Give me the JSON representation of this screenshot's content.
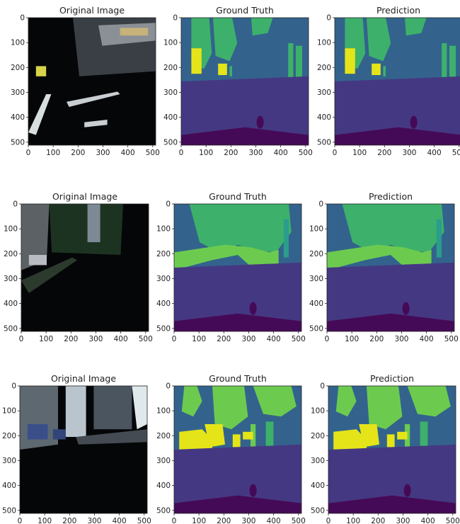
{
  "figure": {
    "panel_titles": [
      "Original Image",
      "Ground Truth",
      "Prediction"
    ],
    "axis": {
      "x_ticks": [
        "0",
        "100",
        "200",
        "300",
        "400",
        "500"
      ],
      "y_ticks": [
        "0",
        "100",
        "200",
        "300",
        "400",
        "500"
      ],
      "range": [
        0,
        512
      ]
    },
    "palette": {
      "sky": "#3d4f8a",
      "building": "#33638d",
      "vegetation": "#3db16b",
      "vegetation_light": "#6ccb4f",
      "road": "#453882",
      "vehicle": "#e5e419",
      "ego": "#450a57",
      "teal": "#2a9d8c",
      "photo_dark": "#050608"
    },
    "rows": [
      {
        "name": "row-1"
      },
      {
        "name": "row-2"
      },
      {
        "name": "row-3"
      }
    ]
  }
}
